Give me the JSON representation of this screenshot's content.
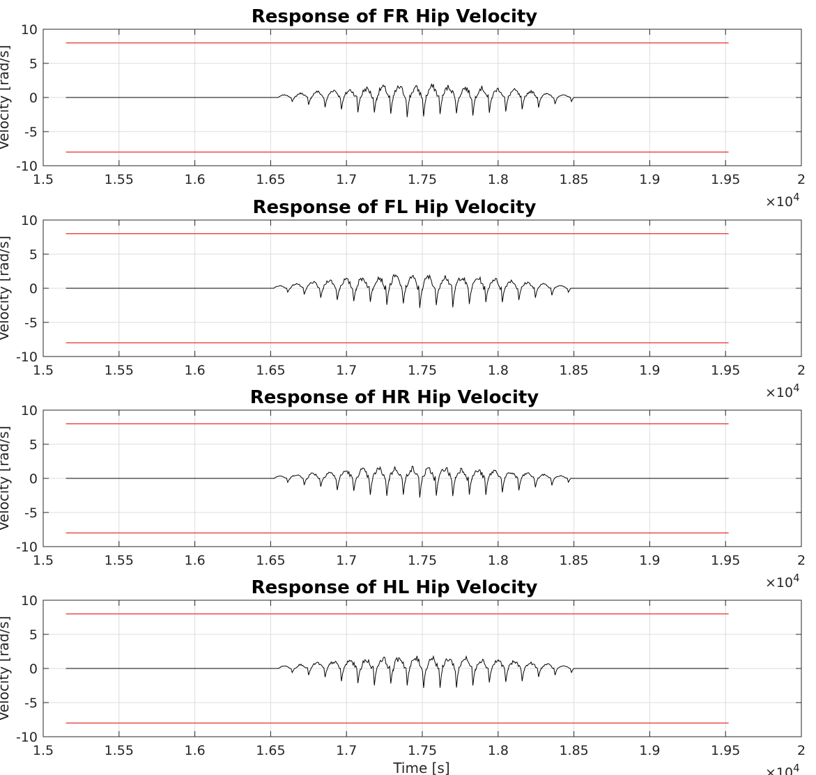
{
  "chart_data": [
    {
      "type": "line",
      "title": "Response of FR Hip Velocity",
      "ylabel": "Velocity [rad/s]",
      "xlabel": "",
      "xlim": [
        15000,
        20000
      ],
      "ylim": [
        -10,
        10
      ],
      "x_ticks": [
        15000,
        15500,
        16000,
        16500,
        17000,
        17500,
        18000,
        18500,
        19000,
        19500,
        20000
      ],
      "x_tick_labels": [
        "1.5",
        "1.55",
        "1.6",
        "1.65",
        "1.7",
        "1.75",
        "1.8",
        "1.85",
        "1.9",
        "1.95",
        "2"
      ],
      "y_ticks": [
        -10,
        -5,
        0,
        5,
        10
      ],
      "y_tick_labels": [
        "-10",
        "-5",
        "0",
        "5",
        "10"
      ],
      "x_exponent_base": "×10",
      "x_exponent_power": "4",
      "grid": true,
      "x_range": [
        15150,
        19520
      ],
      "active_range": [
        16550,
        18500
      ],
      "series": [
        {
          "color": "#e8312b",
          "x": [
            15150,
            19520
          ],
          "y": [
            8,
            8
          ]
        },
        {
          "color": "#e8312b",
          "x": [
            15150,
            19520
          ],
          "y": [
            -8,
            -8
          ]
        },
        {
          "color": "#000000",
          "cycles": 18,
          "peak_max": 2.0,
          "trough_min": -3.0,
          "baseline": 0
        }
      ]
    },
    {
      "type": "line",
      "title": "Response of FL Hip Velocity",
      "ylabel": "Velocity [rad/s]",
      "xlabel": "",
      "xlim": [
        15000,
        20000
      ],
      "ylim": [
        -10,
        10
      ],
      "x_ticks": [
        15000,
        15500,
        16000,
        16500,
        17000,
        17500,
        18000,
        18500,
        19000,
        19500,
        20000
      ],
      "x_tick_labels": [
        "1.5",
        "1.55",
        "1.6",
        "1.65",
        "1.7",
        "1.75",
        "1.8",
        "1.85",
        "1.9",
        "1.95",
        "2"
      ],
      "y_ticks": [
        -10,
        -5,
        0,
        5,
        10
      ],
      "y_tick_labels": [
        "-10",
        "-5",
        "0",
        "5",
        "10"
      ],
      "x_exponent_base": "×10",
      "x_exponent_power": "4",
      "grid": true,
      "x_range": [
        15150,
        19520
      ],
      "active_range": [
        16520,
        18480
      ],
      "series": [
        {
          "color": "#e8312b",
          "x": [
            15150,
            19520
          ],
          "y": [
            8,
            8
          ]
        },
        {
          "color": "#e8312b",
          "x": [
            15150,
            19520
          ],
          "y": [
            -8,
            -8
          ]
        },
        {
          "color": "#000000",
          "cycles": 18,
          "peak_max": 2.2,
          "trough_min": -2.9,
          "baseline": 0
        }
      ]
    },
    {
      "type": "line",
      "title": "Response of HR Hip Velocity",
      "ylabel": "Velocity [rad/s]",
      "xlabel": "",
      "xlim": [
        15000,
        20000
      ],
      "ylim": [
        -10,
        10
      ],
      "x_ticks": [
        15000,
        15500,
        16000,
        16500,
        17000,
        17500,
        18000,
        18500,
        19000,
        19500,
        20000
      ],
      "x_tick_labels": [
        "1.5",
        "1.55",
        "1.6",
        "1.65",
        "1.7",
        "1.75",
        "1.8",
        "1.85",
        "1.9",
        "1.95",
        "2"
      ],
      "y_ticks": [
        -10,
        -5,
        0,
        5,
        10
      ],
      "y_tick_labels": [
        "-10",
        "-5",
        "0",
        "5",
        "10"
      ],
      "x_exponent_base": "×10",
      "x_exponent_power": "4",
      "grid": true,
      "x_range": [
        15150,
        19520
      ],
      "active_range": [
        16520,
        18480
      ],
      "series": [
        {
          "color": "#e8312b",
          "x": [
            15150,
            19520
          ],
          "y": [
            8,
            8
          ]
        },
        {
          "color": "#e8312b",
          "x": [
            15150,
            19520
          ],
          "y": [
            -8,
            -8
          ]
        },
        {
          "color": "#000000",
          "cycles": 18,
          "peak_max": 1.8,
          "trough_min": -2.9,
          "baseline": 0
        }
      ]
    },
    {
      "type": "line",
      "title": "Response of HL Hip Velocity",
      "ylabel": "Velocity [rad/s]",
      "xlabel": "Time [s]",
      "xlim": [
        15000,
        20000
      ],
      "ylim": [
        -10,
        10
      ],
      "x_ticks": [
        15000,
        15500,
        16000,
        16500,
        17000,
        17500,
        18000,
        18500,
        19000,
        19500,
        20000
      ],
      "x_tick_labels": [
        "1.5",
        "1.55",
        "1.6",
        "1.65",
        "1.7",
        "1.75",
        "1.8",
        "1.85",
        "1.9",
        "1.95",
        "2"
      ],
      "y_ticks": [
        -10,
        -5,
        0,
        5,
        10
      ],
      "y_tick_labels": [
        "-10",
        "-5",
        "0",
        "5",
        "10"
      ],
      "x_exponent_base": "×10",
      "x_exponent_power": "4",
      "grid": true,
      "x_range": [
        15150,
        19520
      ],
      "active_range": [
        16550,
        18500
      ],
      "series": [
        {
          "color": "#e8312b",
          "x": [
            15150,
            19520
          ],
          "y": [
            8,
            8
          ]
        },
        {
          "color": "#e8312b",
          "x": [
            15150,
            19520
          ],
          "y": [
            -8,
            -8
          ]
        },
        {
          "color": "#000000",
          "cycles": 18,
          "peak_max": 2.0,
          "trough_min": -3.0,
          "baseline": 0
        }
      ]
    }
  ]
}
